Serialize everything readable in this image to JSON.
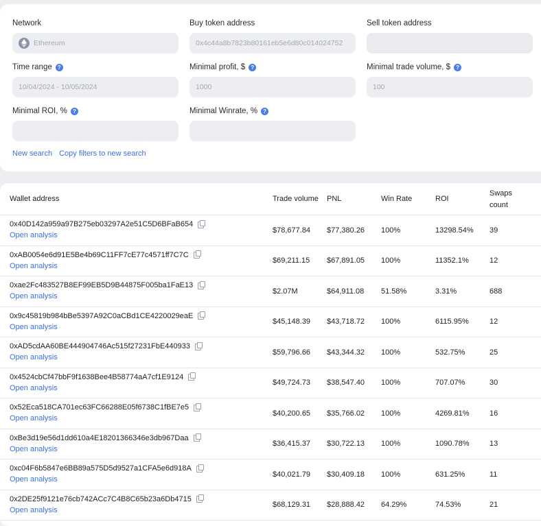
{
  "filters": {
    "network": {
      "label": "Network",
      "value": "Ethereum"
    },
    "buy_token": {
      "label": "Buy token address",
      "value": "0x4c44a8b7823b80161eb5e6d80c014024752"
    },
    "sell_token": {
      "label": "Sell token address",
      "value": ""
    },
    "time_range": {
      "label": "Time range",
      "placeholder": "10/04/2024 - 10/05/2024"
    },
    "min_profit": {
      "label": "Minimal profit, $",
      "placeholder": "1000"
    },
    "min_trade_volume": {
      "label": "Minimal trade volume, $",
      "placeholder": "100"
    },
    "min_roi": {
      "label": "Minimal ROI, %",
      "value": ""
    },
    "min_winrate": {
      "label": "Minimal Winrate, %",
      "value": ""
    },
    "help_glyph": "?",
    "new_search": "New search",
    "copy_filters": "Copy filters to new search"
  },
  "table": {
    "headers": {
      "wallet": "Wallet address",
      "volume": "Trade volume",
      "pnl": "PNL",
      "winrate": "Win Rate",
      "roi": "ROI",
      "swaps": "Swaps count"
    },
    "open_label": "Open analysis",
    "rows": [
      {
        "address": "0x40D142a959a97B275eb03297A2e51C5D6BFaB654",
        "volume": "$78,677.84",
        "pnl": "$77,380.26",
        "winrate": "100%",
        "roi": "13298.54%",
        "swaps": "39"
      },
      {
        "address": "0xAB0054e6d91E5Be4b69C11FF7cE77c4571ff7C7C",
        "volume": "$69,211.15",
        "pnl": "$67,891.05",
        "winrate": "100%",
        "roi": "11352.1%",
        "swaps": "12"
      },
      {
        "address": "0xae2Fc483527B8EF99EB5D9B44875F005ba1FaE13",
        "volume": "$2.07M",
        "pnl": "$64,911.08",
        "winrate": "51.58%",
        "roi": "3.31%",
        "swaps": "688"
      },
      {
        "address": "0x9c45819b984bBe5397A92C0aCBd1CE4220029eaE",
        "volume": "$45,148.39",
        "pnl": "$43,718.72",
        "winrate": "100%",
        "roi": "6115.95%",
        "swaps": "12"
      },
      {
        "address": "0xAD5cdAA60BE444904746Ac515f27231FbE440933",
        "volume": "$59,796.66",
        "pnl": "$43,344.32",
        "winrate": "100%",
        "roi": "532.75%",
        "swaps": "25"
      },
      {
        "address": "0x4524cbCf47bbF9f1638Bee4B58774aA7cf1E9124",
        "volume": "$49,724.73",
        "pnl": "$38,547.40",
        "winrate": "100%",
        "roi": "707.07%",
        "swaps": "30"
      },
      {
        "address": "0x52Eca518CA701ec63FC66288E05f6738C1fBE7e5",
        "volume": "$40,200.65",
        "pnl": "$35,766.02",
        "winrate": "100%",
        "roi": "4269.81%",
        "swaps": "16"
      },
      {
        "address": "0xBe3d19e56d1dd610a4E18201366346e3db967Daa",
        "volume": "$36,415.37",
        "pnl": "$30,722.13",
        "winrate": "100%",
        "roi": "1090.78%",
        "swaps": "13"
      },
      {
        "address": "0xc04F6b5847e6BB89a575D5d9527a1CFA5e6d918A",
        "volume": "$40,021.79",
        "pnl": "$30,409.18",
        "winrate": "100%",
        "roi": "631.25%",
        "swaps": "11"
      },
      {
        "address": "0x2DE25f9121e76cb742ACc7C4B8C65b23a6Db4715",
        "volume": "$68,129.31",
        "pnl": "$28,888.42",
        "winrate": "64.29%",
        "roi": "74.53%",
        "swaps": "21"
      }
    ]
  }
}
